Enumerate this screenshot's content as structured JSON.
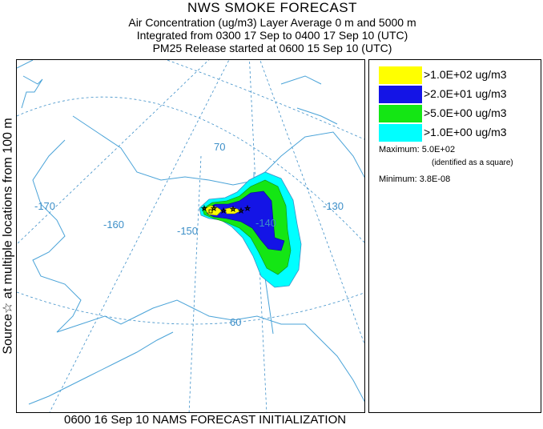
{
  "title": {
    "main": "NWS SMOKE FORECAST",
    "line1": "Air Concentration (ug/m3) Layer Average    0 m and  5000 m",
    "line2": "Integrated from 0300 17 Sep to 0400 17 Sep 10 (UTC)",
    "line3": "PM25 Release started at 0600 15 Sep 10 (UTC)"
  },
  "side_label": "Source☆  at multiple locations   from   100 m",
  "map": {
    "graticule_labels": [
      "-170",
      "-160",
      "-150",
      "-140",
      "-130",
      "70",
      "60"
    ],
    "colors": {
      "graticule": "#3d8fc8",
      "coast": "#4aa3d8"
    },
    "icons": [
      "source-star-icon",
      "maximum-square-icon"
    ]
  },
  "legend": {
    "items": [
      {
        "label": ">1.0E+02 ug/m3",
        "color": "#ffff00"
      },
      {
        "label": ">2.0E+01 ug/m3",
        "color": "#1414e6"
      },
      {
        "label": ">5.0E+00 ug/m3",
        "color": "#14e614"
      },
      {
        "label": ">1.0E+00 ug/m3",
        "color": "#00ffff"
      }
    ],
    "maximum_label": "Maximum: 5.0E+02",
    "maximum_note": "(identified as a square)",
    "minimum_label": "Minimum: 3.8E-08"
  },
  "footer": "0600 16 Sep 10 NAMS FORECAST INITIALIZATION"
}
